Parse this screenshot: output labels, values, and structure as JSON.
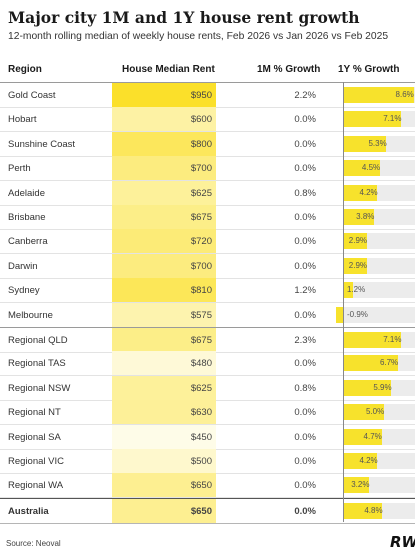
{
  "chart_data": {
    "type": "table",
    "title": "Major city 1M and 1Y house rent growth",
    "subtitle": "12-month rolling median of weekly house rents, Feb 2026 vs Jan 2026 vs Feb 2025",
    "columns": [
      "Region",
      "House Median Rent",
      "1M % Growth",
      "1Y % Growth"
    ],
    "rows": [
      {
        "region": "Gold Coast",
        "median": "$950",
        "m1": "2.2%",
        "y1_label": "8.6%",
        "y1": 8.6
      },
      {
        "region": "Hobart",
        "median": "$600",
        "m1": "0.0%",
        "y1_label": "7.1%",
        "y1": 7.1
      },
      {
        "region": "Sunshine Coast",
        "median": "$800",
        "m1": "0.0%",
        "y1_label": "5.3%",
        "y1": 5.3
      },
      {
        "region": "Perth",
        "median": "$700",
        "m1": "0.0%",
        "y1_label": "4.5%",
        "y1": 4.5
      },
      {
        "region": "Adelaide",
        "median": "$625",
        "m1": "0.8%",
        "y1_label": "4.2%",
        "y1": 4.2
      },
      {
        "region": "Brisbane",
        "median": "$675",
        "m1": "0.0%",
        "y1_label": "3.8%",
        "y1": 3.8
      },
      {
        "region": "Canberra",
        "median": "$720",
        "m1": "0.0%",
        "y1_label": "2.9%",
        "y1": 2.9
      },
      {
        "region": "Darwin",
        "median": "$700",
        "m1": "0.0%",
        "y1_label": "2.9%",
        "y1": 2.9
      },
      {
        "region": "Sydney",
        "median": "$810",
        "m1": "1.2%",
        "y1_label": "1.2%",
        "y1": 1.2
      },
      {
        "region": "Melbourne",
        "median": "$575",
        "m1": "0.0%",
        "y1_label": "-0.9%",
        "y1": -0.9
      },
      {
        "region": "Regional QLD",
        "median": "$675",
        "m1": "2.3%",
        "y1_label": "7.1%",
        "y1": 7.1
      },
      {
        "region": "Regional TAS",
        "median": "$480",
        "m1": "0.0%",
        "y1_label": "6.7%",
        "y1": 6.7
      },
      {
        "region": "Regional NSW",
        "median": "$625",
        "m1": "0.8%",
        "y1_label": "5.9%",
        "y1": 5.9
      },
      {
        "region": "Regional NT",
        "median": "$630",
        "m1": "0.0%",
        "y1_label": "5.0%",
        "y1": 5.0
      },
      {
        "region": "Regional SA",
        "median": "$450",
        "m1": "0.0%",
        "y1_label": "4.7%",
        "y1": 4.7
      },
      {
        "region": "Regional VIC",
        "median": "$500",
        "m1": "0.0%",
        "y1_label": "4.2%",
        "y1": 4.2
      },
      {
        "region": "Regional WA",
        "median": "$650",
        "m1": "0.0%",
        "y1_label": "3.2%",
        "y1": 3.2
      },
      {
        "region": "Australia",
        "median": "$650",
        "m1": "0.0%",
        "y1_label": "4.8%",
        "y1": 4.8
      }
    ],
    "median_heat_colors": {
      "low": "#fefce8",
      "high": "#fbe02a"
    },
    "bar_color": "#f7e22c",
    "track_color": "#ececec"
  },
  "source": "Source: Neoval",
  "logo": "RW"
}
